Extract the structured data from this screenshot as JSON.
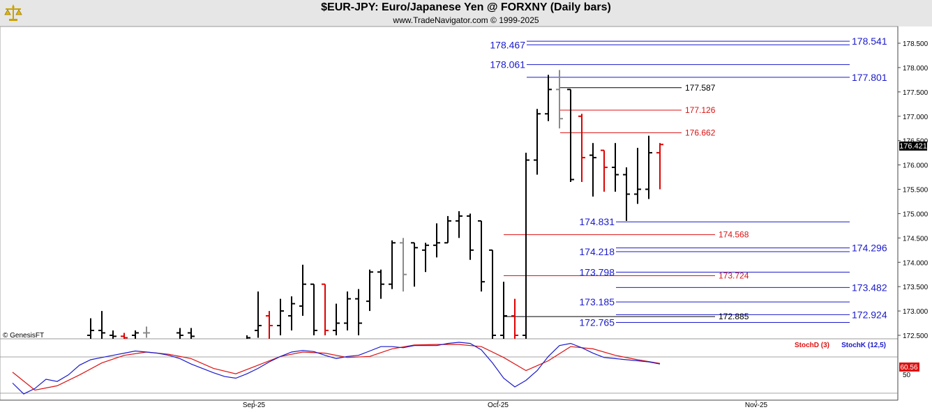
{
  "header": {
    "title": "$EUR-JPY:  Euro/Japanese Yen @ FORXNY  (Daily bars)",
    "subtitle": "www.TradeNavigator.com © 1999-2025",
    "logo_icon": "gold-scales-icon"
  },
  "watermark": "© GenesisFT",
  "colors": {
    "up_bar": "#000000",
    "down_bar": "#dd0000",
    "neutral_bar": "#8a8a8a",
    "blue_level": "#1a1acc",
    "red_level": "#dd1111",
    "black_level": "#000000",
    "stoch_d": "#dd1111",
    "stoch_k": "#1a1acc",
    "last_price_box": "#000000",
    "stoch_value_box": "#dd1111"
  },
  "chart_data": [
    {
      "type": "bar",
      "subtype": "ohlc",
      "title": "$EUR-JPY:  Euro/Japanese Yen @ FORXNY  (Daily bars)",
      "x_tick_labels": [
        "Sep-25",
        "Oct-25",
        "Nov-25"
      ],
      "y_ticks": [
        "172.500",
        "173.000",
        "173.500",
        "174.000",
        "174.500",
        "175.000",
        "175.500",
        "176.000",
        "176.500",
        "177.000",
        "177.500",
        "178.000",
        "178.500"
      ],
      "ylim": [
        172.45,
        178.75
      ],
      "last_price": "176.421",
      "bars": [
        {
          "x": 130,
          "o": 172.5,
          "h": 172.85,
          "l": 172.35,
          "c": 172.6,
          "color": "up"
        },
        {
          "x": 146,
          "o": 172.6,
          "h": 173.0,
          "l": 172.4,
          "c": 172.55,
          "color": "up"
        },
        {
          "x": 162,
          "o": 172.5,
          "h": 172.6,
          "l": 172.4,
          "c": 172.48,
          "color": "up"
        },
        {
          "x": 178,
          "o": 172.48,
          "h": 172.55,
          "l": 172.4,
          "c": 172.45,
          "color": "down"
        },
        {
          "x": 194,
          "o": 172.5,
          "h": 172.6,
          "l": 172.4,
          "c": 172.55,
          "color": "up"
        },
        {
          "x": 210,
          "o": 172.55,
          "h": 172.68,
          "l": 172.45,
          "c": 172.55,
          "color": "neutral"
        },
        {
          "x": 258,
          "o": 172.55,
          "h": 172.65,
          "l": 172.4,
          "c": 172.5,
          "color": "up"
        },
        {
          "x": 274,
          "o": 172.55,
          "h": 172.65,
          "l": 172.4,
          "c": 172.48,
          "color": "up"
        },
        {
          "x": 354,
          "o": 172.4,
          "h": 172.5,
          "l": 172.35,
          "c": 172.45,
          "color": "up"
        },
        {
          "x": 370,
          "o": 172.6,
          "h": 173.4,
          "l": 172.45,
          "c": 172.7,
          "color": "up"
        },
        {
          "x": 386,
          "o": 172.9,
          "h": 173.0,
          "l": 172.4,
          "c": 172.7,
          "color": "down"
        },
        {
          "x": 402,
          "o": 172.7,
          "h": 173.25,
          "l": 172.5,
          "c": 173.0,
          "color": "up"
        },
        {
          "x": 418,
          "o": 172.9,
          "h": 173.3,
          "l": 172.6,
          "c": 173.15,
          "color": "up"
        },
        {
          "x": 434,
          "o": 173.1,
          "h": 173.95,
          "l": 172.9,
          "c": 173.55,
          "color": "up"
        },
        {
          "x": 450,
          "o": 173.55,
          "h": 173.55,
          "l": 172.5,
          "c": 172.6,
          "color": "up"
        },
        {
          "x": 466,
          "o": 173.55,
          "h": 173.55,
          "l": 172.5,
          "c": 172.6,
          "color": "down"
        },
        {
          "x": 482,
          "o": 172.6,
          "h": 173.15,
          "l": 172.5,
          "c": 172.75,
          "color": "up"
        },
        {
          "x": 498,
          "o": 172.75,
          "h": 173.4,
          "l": 172.6,
          "c": 173.25,
          "color": "up"
        },
        {
          "x": 514,
          "o": 173.25,
          "h": 173.45,
          "l": 172.5,
          "c": 172.75,
          "color": "up"
        },
        {
          "x": 530,
          "o": 173.2,
          "h": 173.85,
          "l": 173.0,
          "c": 173.8,
          "color": "up"
        },
        {
          "x": 546,
          "o": 173.8,
          "h": 173.85,
          "l": 173.25,
          "c": 173.55,
          "color": "up"
        },
        {
          "x": 562,
          "o": 173.55,
          "h": 174.45,
          "l": 173.45,
          "c": 174.4,
          "color": "up"
        },
        {
          "x": 578,
          "o": 174.4,
          "h": 174.5,
          "l": 173.4,
          "c": 173.75,
          "color": "neutral"
        },
        {
          "x": 594,
          "o": 174.4,
          "h": 174.4,
          "l": 173.5,
          "c": 174.3,
          "color": "up"
        },
        {
          "x": 610,
          "o": 174.25,
          "h": 174.4,
          "l": 173.8,
          "c": 174.35,
          "color": "up"
        },
        {
          "x": 626,
          "o": 174.35,
          "h": 174.8,
          "l": 174.1,
          "c": 174.4,
          "color": "up"
        },
        {
          "x": 642,
          "o": 174.4,
          "h": 174.95,
          "l": 174.4,
          "c": 174.85,
          "color": "up"
        },
        {
          "x": 658,
          "o": 174.85,
          "h": 175.05,
          "l": 174.5,
          "c": 174.95,
          "color": "up"
        },
        {
          "x": 674,
          "o": 174.95,
          "h": 175.0,
          "l": 174.05,
          "c": 174.25,
          "color": "up"
        },
        {
          "x": 690,
          "o": 174.85,
          "h": 174.85,
          "l": 173.4,
          "c": 173.6,
          "color": "up"
        },
        {
          "x": 706,
          "o": 174.25,
          "h": 174.25,
          "l": 172.4,
          "c": 172.5,
          "color": "up"
        },
        {
          "x": 722,
          "o": 172.5,
          "h": 173.6,
          "l": 172.4,
          "c": 172.9,
          "color": "up"
        },
        {
          "x": 738,
          "o": 172.9,
          "h": 173.25,
          "l": 172.4,
          "c": 172.5,
          "color": "down"
        },
        {
          "x": 754,
          "o": 172.5,
          "h": 176.25,
          "l": 172.4,
          "c": 176.1,
          "color": "up"
        },
        {
          "x": 770,
          "o": 176.1,
          "h": 177.15,
          "l": 175.8,
          "c": 177.05,
          "color": "up"
        },
        {
          "x": 786,
          "o": 177.05,
          "h": 177.85,
          "l": 176.9,
          "c": 177.55,
          "color": "up"
        },
        {
          "x": 802,
          "o": 177.55,
          "h": 177.95,
          "l": 176.75,
          "c": 176.95,
          "color": "neutral"
        },
        {
          "x": 818,
          "o": 177.55,
          "h": 177.55,
          "l": 175.65,
          "c": 175.7,
          "color": "up"
        },
        {
          "x": 834,
          "o": 177.0,
          "h": 177.05,
          "l": 175.65,
          "c": 176.15,
          "color": "down"
        },
        {
          "x": 850,
          "o": 176.2,
          "h": 176.45,
          "l": 175.35,
          "c": 176.15,
          "color": "up"
        },
        {
          "x": 866,
          "o": 176.3,
          "h": 176.3,
          "l": 175.45,
          "c": 175.95,
          "color": "down"
        },
        {
          "x": 882,
          "o": 175.95,
          "h": 176.45,
          "l": 175.45,
          "c": 175.8,
          "color": "up"
        },
        {
          "x": 898,
          "o": 175.8,
          "h": 175.95,
          "l": 174.85,
          "c": 175.4,
          "color": "up"
        },
        {
          "x": 914,
          "o": 175.4,
          "h": 176.35,
          "l": 175.2,
          "c": 175.5,
          "color": "up"
        },
        {
          "x": 930,
          "o": 175.5,
          "h": 176.6,
          "l": 175.3,
          "c": 176.25,
          "color": "up"
        },
        {
          "x": 946,
          "o": 176.25,
          "h": 176.45,
          "l": 175.5,
          "c": 176.42,
          "color": "down"
        }
      ]
    },
    {
      "type": "line",
      "subtype": "levels",
      "levels": [
        {
          "value": 178.541,
          "label": "178.541",
          "color": "blue",
          "x1": 755,
          "x2": 1218,
          "label_side": "right"
        },
        {
          "value": 178.467,
          "label": "178.467",
          "color": "blue",
          "x1": 755,
          "x2": 1218,
          "label_side": "left"
        },
        {
          "value": 178.061,
          "label": "178.061",
          "color": "blue",
          "x1": 755,
          "x2": 1218,
          "label_side": "left"
        },
        {
          "value": 177.801,
          "label": "177.801",
          "color": "blue",
          "x1": 755,
          "x2": 1218,
          "label_side": "right"
        },
        {
          "value": 177.587,
          "label": "177.587",
          "color": "black",
          "x1": 803,
          "x2": 977,
          "label_side": "inline"
        },
        {
          "value": 177.126,
          "label": "177.126",
          "color": "red",
          "x1": 803,
          "x2": 977,
          "label_side": "inline"
        },
        {
          "value": 176.662,
          "label": "176.662",
          "color": "red",
          "x1": 803,
          "x2": 977,
          "label_side": "inline"
        },
        {
          "value": 174.831,
          "label": "174.831",
          "color": "blue",
          "x1": 883,
          "x2": 1218,
          "label_side": "left"
        },
        {
          "value": 174.568,
          "label": "174.568",
          "color": "red",
          "x1": 722,
          "x2": 1025,
          "label_side": "inline"
        },
        {
          "value": 174.296,
          "label": "174.296",
          "color": "blue",
          "x1": 883,
          "x2": 1218,
          "label_side": "right"
        },
        {
          "value": 174.218,
          "label": "174.218",
          "color": "blue",
          "x1": 883,
          "x2": 1218,
          "label_side": "left"
        },
        {
          "value": 173.798,
          "label": "173.798",
          "color": "blue",
          "x1": 883,
          "x2": 1218,
          "label_side": "left"
        },
        {
          "value": 173.724,
          "label": "173.724",
          "color": "red",
          "x1": 722,
          "x2": 1025,
          "label_side": "inline"
        },
        {
          "value": 173.482,
          "label": "173.482",
          "color": "blue",
          "x1": 883,
          "x2": 1218,
          "label_side": "right"
        },
        {
          "value": 173.185,
          "label": "173.185",
          "color": "blue",
          "x1": 883,
          "x2": 1218,
          "label_side": "left"
        },
        {
          "value": 172.924,
          "label": "172.924",
          "color": "blue",
          "x1": 883,
          "x2": 1218,
          "label_side": "right"
        },
        {
          "value": 172.885,
          "label": "172.885",
          "color": "black",
          "x1": 722,
          "x2": 1025,
          "label_side": "inline"
        },
        {
          "value": 172.765,
          "label": "172.765",
          "color": "blue",
          "x1": 883,
          "x2": 1218,
          "label_side": "left"
        }
      ]
    },
    {
      "type": "line",
      "subtype": "stochastic",
      "legend": [
        "StochD (3)",
        "StochK (12,5)"
      ],
      "y_tick": "50",
      "last_value": "60.56",
      "ylim": [
        0,
        100
      ],
      "series": [
        {
          "name": "StochD (3)",
          "color": "red",
          "x": [
            18,
            50,
            82,
            114,
            146,
            178,
            210,
            242,
            274,
            306,
            338,
            370,
            402,
            434,
            466,
            498,
            530,
            562,
            594,
            626,
            658,
            690,
            722,
            754,
            786,
            818,
            850,
            882,
            914,
            946
          ],
          "y": [
            45,
            12,
            20,
            40,
            62,
            76,
            82,
            78,
            70,
            52,
            42,
            58,
            74,
            82,
            80,
            72,
            74,
            88,
            95,
            96,
            96,
            92,
            72,
            48,
            66,
            92,
            88,
            76,
            68,
            61
          ]
        },
        {
          "name": "StochK (12,5)",
          "color": "blue",
          "x": [
            18,
            34,
            50,
            66,
            82,
            98,
            114,
            130,
            146,
            162,
            178,
            194,
            210,
            226,
            242,
            258,
            274,
            290,
            306,
            322,
            338,
            354,
            370,
            386,
            402,
            418,
            434,
            450,
            466,
            482,
            498,
            514,
            530,
            546,
            562,
            578,
            594,
            610,
            626,
            642,
            658,
            674,
            690,
            706,
            722,
            738,
            754,
            770,
            786,
            802,
            818,
            834,
            850,
            866,
            882,
            898,
            914,
            930,
            946
          ],
          "y": [
            25,
            5,
            15,
            32,
            28,
            40,
            58,
            68,
            72,
            76,
            80,
            84,
            82,
            80,
            76,
            70,
            60,
            52,
            44,
            37,
            34,
            42,
            52,
            64,
            74,
            82,
            85,
            83,
            76,
            70,
            74,
            76,
            84,
            92,
            92,
            90,
            94,
            94,
            94,
            98,
            100,
            98,
            86,
            62,
            34,
            18,
            30,
            48,
            74,
            94,
            98,
            90,
            80,
            72,
            70,
            68,
            66,
            64,
            60
          ]
        }
      ]
    }
  ]
}
